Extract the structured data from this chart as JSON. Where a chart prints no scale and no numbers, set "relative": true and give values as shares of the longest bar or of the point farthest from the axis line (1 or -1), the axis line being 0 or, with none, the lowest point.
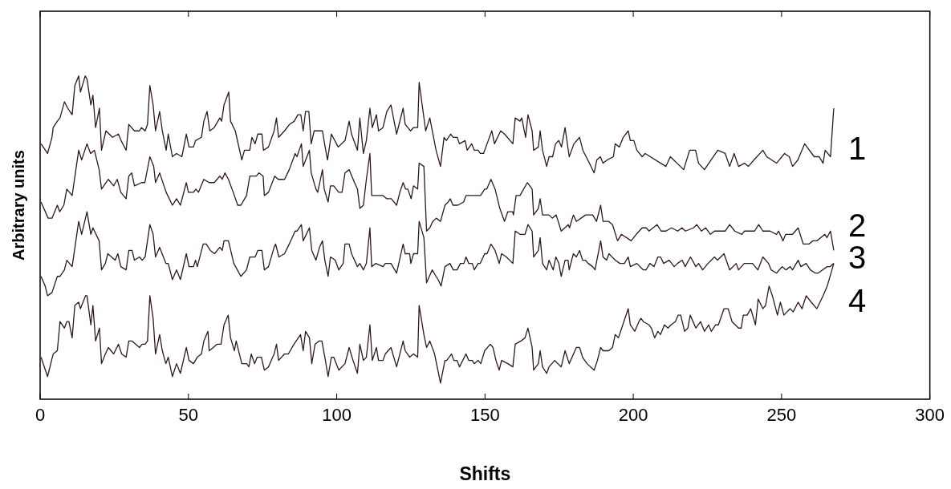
{
  "chart_data": {
    "type": "line",
    "xlabel": "Shifts",
    "ylabel": "Arbitrary units",
    "relative": true,
    "xlim": [
      0,
      300
    ],
    "xticks": [
      0,
      50,
      100,
      150,
      200,
      250,
      300
    ],
    "grid": false,
    "legend": false,
    "marker": "none",
    "line_style": "solid",
    "series": [
      {
        "name": "1",
        "color": "#301818",
        "x": [
          0.3,
          2.5,
          4,
          4.4,
          5.8,
          6.7,
          8.2,
          9.3,
          10.8,
          11.7,
          13,
          13.6,
          15.2,
          15.8,
          17.1,
          17.8,
          18.7,
          20,
          20.7,
          22.2,
          24.4,
          26.4,
          27.3,
          29,
          29.9,
          31.8,
          33.5,
          34.2,
          35.4,
          36.2,
          37,
          38.1,
          38.9,
          40.3,
          41.2,
          42.5,
          43.2,
          44.6,
          46,
          47.8,
          49.3,
          50.2,
          51.7,
          52.4,
          54.4,
          55.2,
          56.3,
          57.2,
          58.7,
          60.6,
          61.2,
          62,
          63.6,
          64.2,
          65.8,
          68,
          68.9,
          70.7,
          71.4,
          72.5,
          73.4,
          74.8,
          75.3,
          77,
          78.9,
          79.7,
          80.4,
          82.4,
          84.1,
          85.7,
          86.9,
          87.9,
          88.7,
          89.5,
          90.6,
          91.4,
          92.4,
          95.2,
          96.1,
          96.9,
          98.2,
          100.5,
          102.8,
          104.2,
          105,
          107,
          107.8,
          109,
          110,
          111.2,
          112,
          113.4,
          114.1,
          115.6,
          116.9,
          118.3,
          120.2,
          122.4,
          123.1,
          124.9,
          125.9,
          127.3,
          127.8,
          130,
          131.4,
          133.5,
          135,
          136.2,
          137,
          138.4,
          139.3,
          140.6,
          141.4,
          143.3,
          144,
          145.5,
          146.4,
          147.7,
          148.4,
          149.5,
          150.7,
          152.3,
          153.2,
          155.3,
          156.6,
          159.4,
          160.2,
          161.8,
          162.4,
          163.7,
          164.5,
          165.9,
          166.4,
          168,
          168.6,
          169.4,
          170.8,
          171.6,
          172.8,
          173.8,
          174.9,
          175.8,
          177,
          178.4,
          180,
          181.9,
          183,
          185.2,
          186.8,
          187.7,
          188.9,
          189.8,
          191.2,
          193.3,
          193.9,
          195.3,
          196.6,
          198.3,
          199,
          200.2,
          201.2,
          203,
          204,
          211,
          212.5,
          217,
          219,
          221,
          222,
          224,
          228.5,
          231,
          232.5,
          234,
          235.5,
          237.5,
          238.8,
          240.7,
          243.7,
          245,
          248.3,
          251,
          252.6,
          253.7,
          255.5,
          257.8,
          261,
          262.7,
          264,
          264.7,
          266.5,
          267.6
        ],
        "values": [
          0.79,
          0.76,
          0.81,
          0.84,
          0.86,
          0.87,
          0.92,
          0.9,
          0.88,
          0.97,
          1.0,
          0.95,
          1.0,
          0.99,
          0.91,
          0.94,
          0.84,
          0.9,
          0.77,
          0.83,
          0.81,
          0.82,
          0.8,
          0.77,
          0.85,
          0.83,
          0.83,
          0.84,
          0.83,
          0.85,
          0.97,
          0.91,
          0.83,
          0.89,
          0.83,
          0.77,
          0.82,
          0.75,
          0.76,
          0.75,
          0.82,
          0.78,
          0.78,
          0.8,
          0.81,
          0.86,
          0.89,
          0.83,
          0.84,
          0.87,
          0.86,
          0.91,
          0.95,
          0.86,
          0.83,
          0.74,
          0.77,
          0.77,
          0.81,
          0.79,
          0.82,
          0.82,
          0.77,
          0.78,
          0.83,
          0.87,
          0.81,
          0.83,
          0.85,
          0.86,
          0.88,
          0.88,
          0.83,
          0.89,
          0.89,
          0.79,
          0.83,
          0.83,
          0.78,
          0.74,
          0.82,
          0.78,
          0.8,
          0.86,
          0.82,
          0.77,
          0.87,
          0.76,
          0.8,
          0.9,
          0.84,
          0.88,
          0.83,
          0.84,
          0.89,
          0.91,
          0.82,
          0.9,
          0.85,
          0.83,
          0.84,
          0.84,
          0.98,
          0.83,
          0.87,
          0.77,
          0.72,
          0.81,
          0.8,
          0.82,
          0.81,
          0.81,
          0.79,
          0.8,
          0.77,
          0.79,
          0.77,
          0.77,
          0.76,
          0.76,
          0.79,
          0.83,
          0.79,
          0.83,
          0.82,
          0.79,
          0.87,
          0.86,
          0.87,
          0.81,
          0.88,
          0.83,
          0.77,
          0.78,
          0.83,
          0.77,
          0.72,
          0.75,
          0.75,
          0.79,
          0.8,
          0.78,
          0.84,
          0.75,
          0.79,
          0.81,
          0.77,
          0.73,
          0.7,
          0.74,
          0.75,
          0.73,
          0.74,
          0.75,
          0.79,
          0.78,
          0.81,
          0.83,
          0.8,
          0.8,
          0.77,
          0.75,
          0.76,
          0.72,
          0.75,
          0.71,
          0.77,
          0.77,
          0.73,
          0.71,
          0.77,
          0.76,
          0.72,
          0.76,
          0.72,
          0.73,
          0.72,
          0.74,
          0.77,
          0.75,
          0.73,
          0.76,
          0.75,
          0.72,
          0.74,
          0.79,
          0.75,
          0.75,
          0.73,
          0.77,
          0.75,
          0.9
        ]
      },
      {
        "name": "2",
        "color": "#301818",
        "x": [
          0.3,
          2.7,
          4,
          5.8,
          6.6,
          8,
          9,
          10.8,
          13,
          14,
          15.8,
          17,
          18.3,
          19.9,
          20.7,
          23,
          24.8,
          26,
          27.2,
          29,
          29.9,
          30.9,
          31.8,
          34.3,
          35.3,
          37,
          38.3,
          38.9,
          40.3,
          42.5,
          44.6,
          46,
          47.3,
          49.3,
          50,
          51.7,
          52.5,
          53.4,
          55.2,
          57,
          58.7,
          60.6,
          61.4,
          62.3,
          63.5,
          65.5,
          66.6,
          67.7,
          69.6,
          70.7,
          72.9,
          73.8,
          75.2,
          75.6,
          77,
          79.1,
          80.3,
          82.4,
          84,
          86,
          86.6,
          88.1,
          88.7,
          90.8,
          91.4,
          93,
          93.6,
          95.2,
          95.8,
          97.1,
          97.9,
          99,
          100.7,
          101.8,
          102.8,
          104.2,
          106,
          107,
          107.8,
          109,
          110,
          111.2,
          111.8,
          113.7,
          114.5,
          115.6,
          116.9,
          118.4,
          120.2,
          121.3,
          122.4,
          123.2,
          124,
          125.1,
          125.9,
          127.3,
          127.8,
          129.4,
          130.3,
          131.4,
          132.4,
          133.6,
          135,
          136.5,
          137.6,
          138.3,
          139.2,
          140.8,
          142.8,
          143.6,
          146.9,
          148.5,
          149.9,
          150.6,
          152,
          153.4,
          155,
          156.6,
          157.7,
          159.3,
          159.6,
          160.5,
          161.8,
          164.3,
          165.9,
          166.4,
          168,
          168.6,
          169.4,
          170.8,
          171.6,
          172.7,
          174,
          175.7,
          178.1,
          178.5,
          179.8,
          180.8,
          183.9,
          186.3,
          187.6,
          189,
          189.8,
          191.7,
          193,
          194.7,
          196,
          199.3,
          201,
          203,
          204.4,
          205.3,
          208,
          209.4,
          211,
          212.9,
          215,
          216.4,
          217.6,
          220.3,
          221.4,
          223,
          224.4,
          226,
          227.4,
          229.8,
          231,
          232.5,
          234.2,
          236.6,
          237.5,
          239.6,
          240.9,
          242.3,
          243.7,
          246.1,
          248.3,
          249,
          250.5,
          251.4,
          253.7,
          255.6,
          257.3,
          259.2,
          260.6,
          261.9,
          263.3,
          264.6,
          265.3,
          266.5,
          267.6
        ],
        "values": [
          0.61,
          0.56,
          0.56,
          0.6,
          0.58,
          0.6,
          0.65,
          0.63,
          0.77,
          0.74,
          0.79,
          0.76,
          0.77,
          0.71,
          0.65,
          0.68,
          0.66,
          0.68,
          0.64,
          0.62,
          0.69,
          0.7,
          0.66,
          0.67,
          0.67,
          0.75,
          0.72,
          0.67,
          0.7,
          0.64,
          0.6,
          0.62,
          0.6,
          0.67,
          0.64,
          0.64,
          0.65,
          0.64,
          0.68,
          0.67,
          0.67,
          0.69,
          0.68,
          0.7,
          0.68,
          0.63,
          0.6,
          0.6,
          0.63,
          0.69,
          0.69,
          0.7,
          0.69,
          0.63,
          0.64,
          0.69,
          0.68,
          0.68,
          0.71,
          0.76,
          0.75,
          0.79,
          0.72,
          0.77,
          0.7,
          0.65,
          0.64,
          0.71,
          0.65,
          0.61,
          0.66,
          0.66,
          0.64,
          0.64,
          0.7,
          0.71,
          0.67,
          0.65,
          0.59,
          0.6,
          0.68,
          0.76,
          0.63,
          0.63,
          0.63,
          0.63,
          0.62,
          0.62,
          0.6,
          0.64,
          0.67,
          0.65,
          0.65,
          0.62,
          0.66,
          0.65,
          0.73,
          0.72,
          0.52,
          0.53,
          0.55,
          0.56,
          0.55,
          0.6,
          0.61,
          0.62,
          0.6,
          0.6,
          0.61,
          0.63,
          0.63,
          0.63,
          0.65,
          0.65,
          0.68,
          0.65,
          0.59,
          0.55,
          0.58,
          0.58,
          0.57,
          0.63,
          0.63,
          0.67,
          0.65,
          0.57,
          0.59,
          0.62,
          0.57,
          0.57,
          0.57,
          0.56,
          0.57,
          0.52,
          0.54,
          0.53,
          0.57,
          0.55,
          0.57,
          0.57,
          0.55,
          0.6,
          0.55,
          0.55,
          0.54,
          0.49,
          0.51,
          0.49,
          0.51,
          0.53,
          0.53,
          0.52,
          0.54,
          0.52,
          0.52,
          0.53,
          0.52,
          0.53,
          0.52,
          0.53,
          0.54,
          0.52,
          0.53,
          0.51,
          0.52,
          0.52,
          0.52,
          0.54,
          0.52,
          0.51,
          0.52,
          0.52,
          0.52,
          0.54,
          0.52,
          0.52,
          0.51,
          0.52,
          0.49,
          0.51,
          0.51,
          0.53,
          0.48,
          0.48,
          0.49,
          0.49,
          0.5,
          0.51,
          0.5,
          0.52,
          0.46
        ]
      },
      {
        "name": "3",
        "color": "#301818",
        "x": [
          0.3,
          1.7,
          2.5,
          4,
          5.8,
          6.7,
          8.2,
          9,
          10.8,
          13,
          14,
          15.8,
          17.1,
          17.8,
          19.9,
          20.7,
          22,
          22.8,
          25.3,
          26.2,
          27.2,
          29,
          29.9,
          31,
          31.8,
          33.5,
          34.4,
          35.4,
          37,
          38.1,
          38.9,
          40.3,
          42.4,
          43.2,
          44.6,
          46,
          47.3,
          49.3,
          50.2,
          51.7,
          52.4,
          53,
          55,
          56,
          57.4,
          58.8,
          60.6,
          61.4,
          62,
          63.5,
          65.3,
          67.7,
          69.6,
          70.7,
          72.5,
          73.4,
          74.8,
          75.6,
          77,
          78.9,
          79.4,
          80.5,
          82.4,
          84,
          86,
          86.6,
          88.1,
          88.7,
          90.8,
          91.6,
          93,
          94.2,
          95.2,
          96,
          97.1,
          97.9,
          99.5,
          100.7,
          102.2,
          102.8,
          104.2,
          105,
          107,
          107.8,
          109,
          110,
          111.2,
          111.8,
          113.2,
          115.6,
          116.4,
          118.3,
          120.2,
          122.4,
          123.1,
          124.6,
          125,
          125.9,
          127.3,
          127.8,
          129.4,
          130.3,
          132.2,
          133.5,
          134.2,
          135.2,
          136.5,
          138.2,
          139.3,
          140.6,
          141.7,
          142.9,
          143.6,
          144.5,
          145.7,
          146.4,
          147.7,
          148.4,
          149.9,
          150.7,
          152,
          153.4,
          154.8,
          155.6,
          157.2,
          159.4,
          160.2,
          161.8,
          162.7,
          163.5,
          164.5,
          165.9,
          166.4,
          168,
          168.6,
          169.4,
          170.8,
          171.6,
          173,
          173.9,
          174.9,
          175.7,
          177,
          178,
          178.4,
          179.8,
          180.8,
          181.9,
          182.9,
          183.9,
          184.8,
          186.3,
          187.1,
          189,
          189.8,
          191,
          191.8,
          193.9,
          195.5,
          197,
          198.3,
          199,
          201.2,
          203.4,
          204.3,
          205.6,
          207,
          208.3,
          209.2,
          210.2,
          212.1,
          213.8,
          214.9,
          216.5,
          217.5,
          219.3,
          221.1,
          222,
          223.4,
          225.2,
          227.4,
          228.4,
          230.6,
          232.5,
          234.7,
          235.5,
          237.4,
          239.3,
          240.2,
          242,
          243.7,
          245.6,
          246.5,
          248.3,
          250.2,
          251.5,
          252.9,
          253.7,
          255.6,
          256.5,
          258.3,
          259.7,
          261.4,
          262.3,
          263.8,
          265.4,
          266.3,
          267.6
        ],
        "values": [
          0.38,
          0.35,
          0.32,
          0.33,
          0.38,
          0.38,
          0.4,
          0.43,
          0.41,
          0.55,
          0.51,
          0.58,
          0.51,
          0.53,
          0.49,
          0.4,
          0.42,
          0.45,
          0.43,
          0.45,
          0.41,
          0.4,
          0.46,
          0.46,
          0.43,
          0.44,
          0.43,
          0.44,
          0.54,
          0.51,
          0.44,
          0.47,
          0.42,
          0.42,
          0.37,
          0.4,
          0.37,
          0.45,
          0.41,
          0.41,
          0.43,
          0.41,
          0.48,
          0.48,
          0.46,
          0.45,
          0.47,
          0.46,
          0.49,
          0.49,
          0.42,
          0.38,
          0.4,
          0.44,
          0.44,
          0.46,
          0.46,
          0.4,
          0.41,
          0.47,
          0.48,
          0.44,
          0.45,
          0.48,
          0.52,
          0.52,
          0.54,
          0.49,
          0.53,
          0.46,
          0.43,
          0.47,
          0.49,
          0.43,
          0.38,
          0.44,
          0.43,
          0.4,
          0.42,
          0.48,
          0.48,
          0.45,
          0.41,
          0.42,
          0.4,
          0.42,
          0.53,
          0.41,
          0.42,
          0.41,
          0.42,
          0.42,
          0.39,
          0.48,
          0.45,
          0.45,
          0.42,
          0.45,
          0.45,
          0.55,
          0.5,
          0.36,
          0.4,
          0.38,
          0.37,
          0.35,
          0.41,
          0.42,
          0.4,
          0.4,
          0.42,
          0.42,
          0.44,
          0.42,
          0.42,
          0.4,
          0.42,
          0.42,
          0.45,
          0.45,
          0.48,
          0.46,
          0.42,
          0.45,
          0.44,
          0.42,
          0.52,
          0.51,
          0.51,
          0.51,
          0.54,
          0.52,
          0.44,
          0.46,
          0.5,
          0.42,
          0.4,
          0.43,
          0.4,
          0.44,
          0.42,
          0.38,
          0.43,
          0.43,
          0.4,
          0.45,
          0.44,
          0.46,
          0.43,
          0.43,
          0.42,
          0.41,
          0.4,
          0.49,
          0.44,
          0.43,
          0.45,
          0.43,
          0.42,
          0.42,
          0.44,
          0.41,
          0.42,
          0.4,
          0.4,
          0.42,
          0.41,
          0.44,
          0.44,
          0.42,
          0.43,
          0.41,
          0.42,
          0.43,
          0.41,
          0.44,
          0.41,
          0.42,
          0.4,
          0.42,
          0.44,
          0.43,
          0.45,
          0.4,
          0.42,
          0.4,
          0.42,
          0.42,
          0.42,
          0.4,
          0.44,
          0.42,
          0.4,
          0.39,
          0.41,
          0.4,
          0.41,
          0.4,
          0.43,
          0.41,
          0.42,
          0.4,
          0.39,
          0.39,
          0.4,
          0.41,
          0.41,
          0.42
        ]
      },
      {
        "name": "4",
        "color": "#301818",
        "x": [
          0.3,
          2.5,
          4.4,
          5.8,
          6.7,
          8.2,
          9,
          9.7,
          10.8,
          11.7,
          13,
          13.6,
          15.3,
          15.8,
          17.1,
          17.8,
          18.7,
          20,
          20.7,
          22,
          23,
          24.8,
          26.4,
          27.5,
          29,
          29.9,
          31,
          33.5,
          34.4,
          35.4,
          36.2,
          37,
          38.1,
          38.9,
          40.3,
          41.2,
          42.4,
          43.2,
          44.6,
          46,
          47.3,
          49.3,
          50.2,
          51.7,
          53,
          54.4,
          55.2,
          56.6,
          57,
          58.4,
          59.6,
          61,
          62,
          63.4,
          64.2,
          65.5,
          66.1,
          68,
          69.6,
          70.4,
          71.2,
          72.3,
          73.2,
          74.6,
          75.6,
          77,
          78.9,
          79.7,
          80.4,
          82.4,
          83.7,
          85.6,
          87.8,
          88.7,
          89.5,
          90.8,
          91.6,
          92.7,
          94,
          95,
          96,
          97.1,
          98.2,
          99,
          100.7,
          102.8,
          104.2,
          105.5,
          107,
          107.8,
          109,
          110,
          111.2,
          112,
          113.4,
          114.1,
          115.6,
          116.4,
          118.3,
          120.2,
          122.4,
          123.1,
          124.6,
          125.9,
          127.3,
          127.8,
          129.4,
          130.3,
          131.4,
          133,
          135,
          136.5,
          137.1,
          138.7,
          139.5,
          140.6,
          141.4,
          143.6,
          144.5,
          145.7,
          146.4,
          147.7,
          148.6,
          149.9,
          151.8,
          152.7,
          153.7,
          154.8,
          155.6,
          157.7,
          159.4,
          160.2,
          162.1,
          163.5,
          164.5,
          165.9,
          166.4,
          168,
          168.6,
          169.4,
          170.8,
          171.6,
          173.5,
          175.7,
          177,
          178.4,
          180.8,
          181.9,
          182.9,
          184.4,
          186.8,
          187.9,
          189,
          189.8,
          191.7,
          193,
          193.9,
          195,
          196.1,
          198.3,
          199,
          200.5,
          201.9,
          202.6,
          203.4,
          205.3,
          206.1,
          207.2,
          208.3,
          209.2,
          210.5,
          211.7,
          212.7,
          214.2,
          215.1,
          216,
          217.3,
          218.4,
          219.2,
          221.1,
          222.7,
          224,
          225.4,
          226.3,
          227.8,
          228.7,
          230.6,
          232,
          233.3,
          234.4,
          235.5,
          236.4,
          237.1,
          238.4,
          239.6,
          241.2,
          242.1,
          243.7,
          244.6,
          245.8,
          246.9,
          248.6,
          249.6,
          250.8,
          251.8,
          252.9,
          253.9,
          255.6,
          256.9,
          258.3,
          260,
          261.9,
          264,
          265.4,
          267.6
        ],
        "values": [
          0.13,
          0.07,
          0.14,
          0.15,
          0.24,
          0.22,
          0.24,
          0.24,
          0.19,
          0.29,
          0.3,
          0.28,
          0.32,
          0.32,
          0.23,
          0.29,
          0.18,
          0.22,
          0.11,
          0.14,
          0.16,
          0.14,
          0.17,
          0.14,
          0.13,
          0.18,
          0.18,
          0.16,
          0.17,
          0.17,
          0.18,
          0.32,
          0.25,
          0.14,
          0.2,
          0.15,
          0.11,
          0.13,
          0.07,
          0.11,
          0.08,
          0.16,
          0.12,
          0.11,
          0.13,
          0.14,
          0.18,
          0.21,
          0.15,
          0.16,
          0.17,
          0.17,
          0.23,
          0.26,
          0.19,
          0.15,
          0.18,
          0.11,
          0.11,
          0.1,
          0.14,
          0.11,
          0.13,
          0.13,
          0.09,
          0.1,
          0.14,
          0.17,
          0.12,
          0.14,
          0.14,
          0.17,
          0.2,
          0.15,
          0.21,
          0.19,
          0.11,
          0.17,
          0.18,
          0.18,
          0.13,
          0.07,
          0.13,
          0.13,
          0.09,
          0.11,
          0.16,
          0.12,
          0.08,
          0.17,
          0.12,
          0.13,
          0.23,
          0.12,
          0.16,
          0.12,
          0.12,
          0.14,
          0.16,
          0.1,
          0.18,
          0.15,
          0.13,
          0.14,
          0.13,
          0.29,
          0.2,
          0.16,
          0.18,
          0.14,
          0.05,
          0.12,
          0.12,
          0.14,
          0.12,
          0.12,
          0.1,
          0.14,
          0.12,
          0.12,
          0.11,
          0.12,
          0.11,
          0.15,
          0.17,
          0.16,
          0.12,
          0.09,
          0.12,
          0.11,
          0.1,
          0.17,
          0.18,
          0.19,
          0.22,
          0.16,
          0.09,
          0.11,
          0.15,
          0.1,
          0.08,
          0.1,
          0.12,
          0.1,
          0.15,
          0.11,
          0.16,
          0.16,
          0.13,
          0.11,
          0.09,
          0.12,
          0.16,
          0.15,
          0.15,
          0.16,
          0.2,
          0.19,
          0.22,
          0.28,
          0.23,
          0.21,
          0.24,
          0.25,
          0.24,
          0.23,
          0.22,
          0.19,
          0.21,
          0.2,
          0.23,
          0.22,
          0.23,
          0.24,
          0.26,
          0.26,
          0.21,
          0.22,
          0.26,
          0.22,
          0.24,
          0.21,
          0.23,
          0.21,
          0.23,
          0.23,
          0.28,
          0.28,
          0.24,
          0.23,
          0.22,
          0.22,
          0.26,
          0.26,
          0.28,
          0.23,
          0.31,
          0.28,
          0.29,
          0.35,
          0.32,
          0.26,
          0.3,
          0.26,
          0.27,
          0.28,
          0.27,
          0.3,
          0.28,
          0.32,
          0.3,
          0.28,
          0.32,
          0.35,
          0.42
        ]
      }
    ]
  }
}
